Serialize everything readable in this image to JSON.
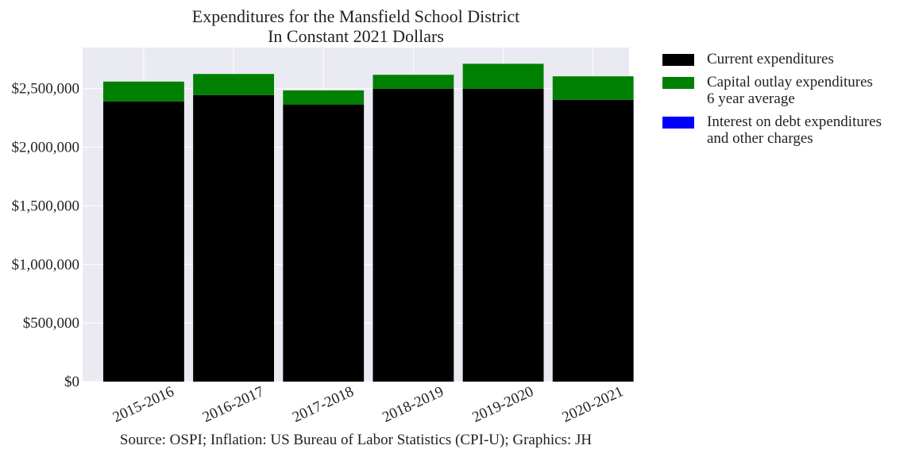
{
  "chart_data": {
    "type": "bar",
    "stacked": true,
    "title": "Expenditures for the Mansfield School District",
    "subtitle": "In Constant 2021 Dollars",
    "categories": [
      "2015-2016",
      "2016-2017",
      "2017-2018",
      "2018-2019",
      "2019-2020",
      "2020-2021"
    ],
    "series": [
      {
        "name": "Current expenditures",
        "color": "#000000",
        "values": [
          2390000,
          2445000,
          2365000,
          2500000,
          2500000,
          2405000
        ]
      },
      {
        "name": "Capital outlay expenditures\n6 year average",
        "color": "#008000",
        "values": [
          170000,
          180000,
          120000,
          118000,
          212000,
          200000
        ]
      },
      {
        "name": "Interest on debt expenditures\nand other charges",
        "color": "#0000ff",
        "values": [
          0,
          0,
          0,
          0,
          0,
          0
        ]
      }
    ],
    "yticks": [
      "$0",
      "$500,000",
      "$1,000,000",
      "$1,500,000",
      "$2,000,000",
      "$2,500,000"
    ],
    "ytick_values": [
      0,
      500000,
      1000000,
      1500000,
      2000000,
      2500000
    ],
    "ylim": [
      0,
      2850000
    ],
    "grid": true,
    "legend_position": "outside-right-top",
    "background": "#eaeaf2"
  },
  "source_note": "Source: OSPI; Inflation: US Bureau of Labor Statistics (CPI-U); Graphics: JH"
}
